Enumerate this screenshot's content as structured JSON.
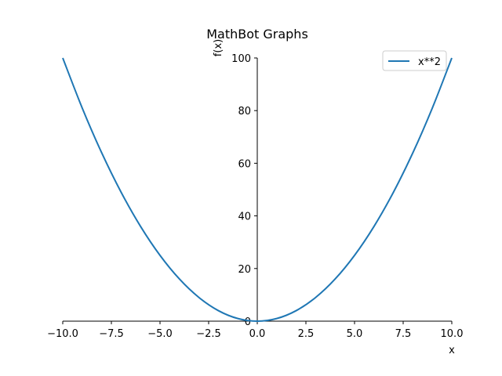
{
  "chart_data": {
    "type": "line",
    "title": "MathBot Graphs",
    "xlabel": "x",
    "ylabel": "f(x)",
    "xlim": [
      -10,
      10
    ],
    "ylim": [
      0,
      100
    ],
    "x_ticks": [
      -10,
      -7.5,
      -5,
      -2.5,
      0,
      2.5,
      5,
      7.5,
      10
    ],
    "x_tick_labels": [
      "−10.0",
      "−7.5",
      "−5.0",
      "−2.5",
      "0.0",
      "2.5",
      "5.0",
      "7.5",
      "10.0"
    ],
    "y_ticks": [
      0,
      20,
      40,
      60,
      80,
      100
    ],
    "y_tick_labels": [
      "0",
      "20",
      "40",
      "60",
      "80",
      "100"
    ],
    "grid": false,
    "legend_position": "top-right",
    "series": [
      {
        "name": "x**2",
        "color": "#1f77b4",
        "x": [
          -10,
          -9,
          -8,
          -7,
          -6,
          -5,
          -4,
          -3,
          -2,
          -1,
          0,
          1,
          2,
          3,
          4,
          5,
          6,
          7,
          8,
          9,
          10
        ],
        "y": [
          100,
          81,
          64,
          49,
          36,
          25,
          16,
          9,
          4,
          1,
          0,
          1,
          4,
          9,
          16,
          25,
          36,
          49,
          64,
          81,
          100
        ]
      }
    ]
  }
}
